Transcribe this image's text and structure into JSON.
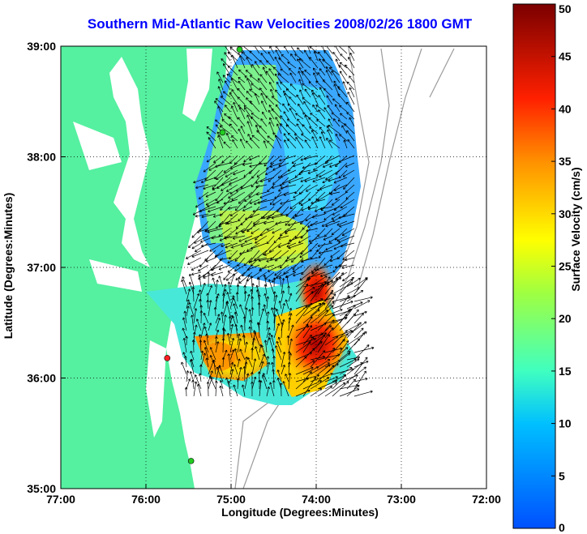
{
  "title": "Southern Mid-Atlantic Raw Velocities 2008/02/26 1800 GMT",
  "xlabel": "Longitude (Degrees:Minutes)",
  "ylabel": "Latitude (Degrees:Minutes)",
  "colorbar": {
    "label": "Surface Velocity (cm/s)",
    "range": [
      0,
      50
    ],
    "ticks": [
      "0",
      "5",
      "10",
      "15",
      "20",
      "25",
      "30",
      "35",
      "40",
      "45",
      "50"
    ]
  },
  "map": {
    "x_ticks": [
      "77:00",
      "76:00",
      "75:00",
      "74:00",
      "73:00",
      "72:00"
    ],
    "y_ticks": [
      "39:00",
      "38:00",
      "37:00",
      "36:00",
      "35:00"
    ],
    "x_range": [
      -77,
      -72
    ],
    "y_range": [
      35,
      39
    ],
    "land_color": "#55f0a0",
    "grid": true
  },
  "stations": [
    {
      "lon": -74.9,
      "lat": 38.97,
      "color": "#22cc22"
    },
    {
      "lon": -75.1,
      "lat": 38.22,
      "color": "#22cc22"
    },
    {
      "lon": -75.75,
      "lat": 36.18,
      "color": "#ff2222"
    },
    {
      "lon": -75.47,
      "lat": 35.25,
      "color": "#22cc22"
    }
  ]
}
